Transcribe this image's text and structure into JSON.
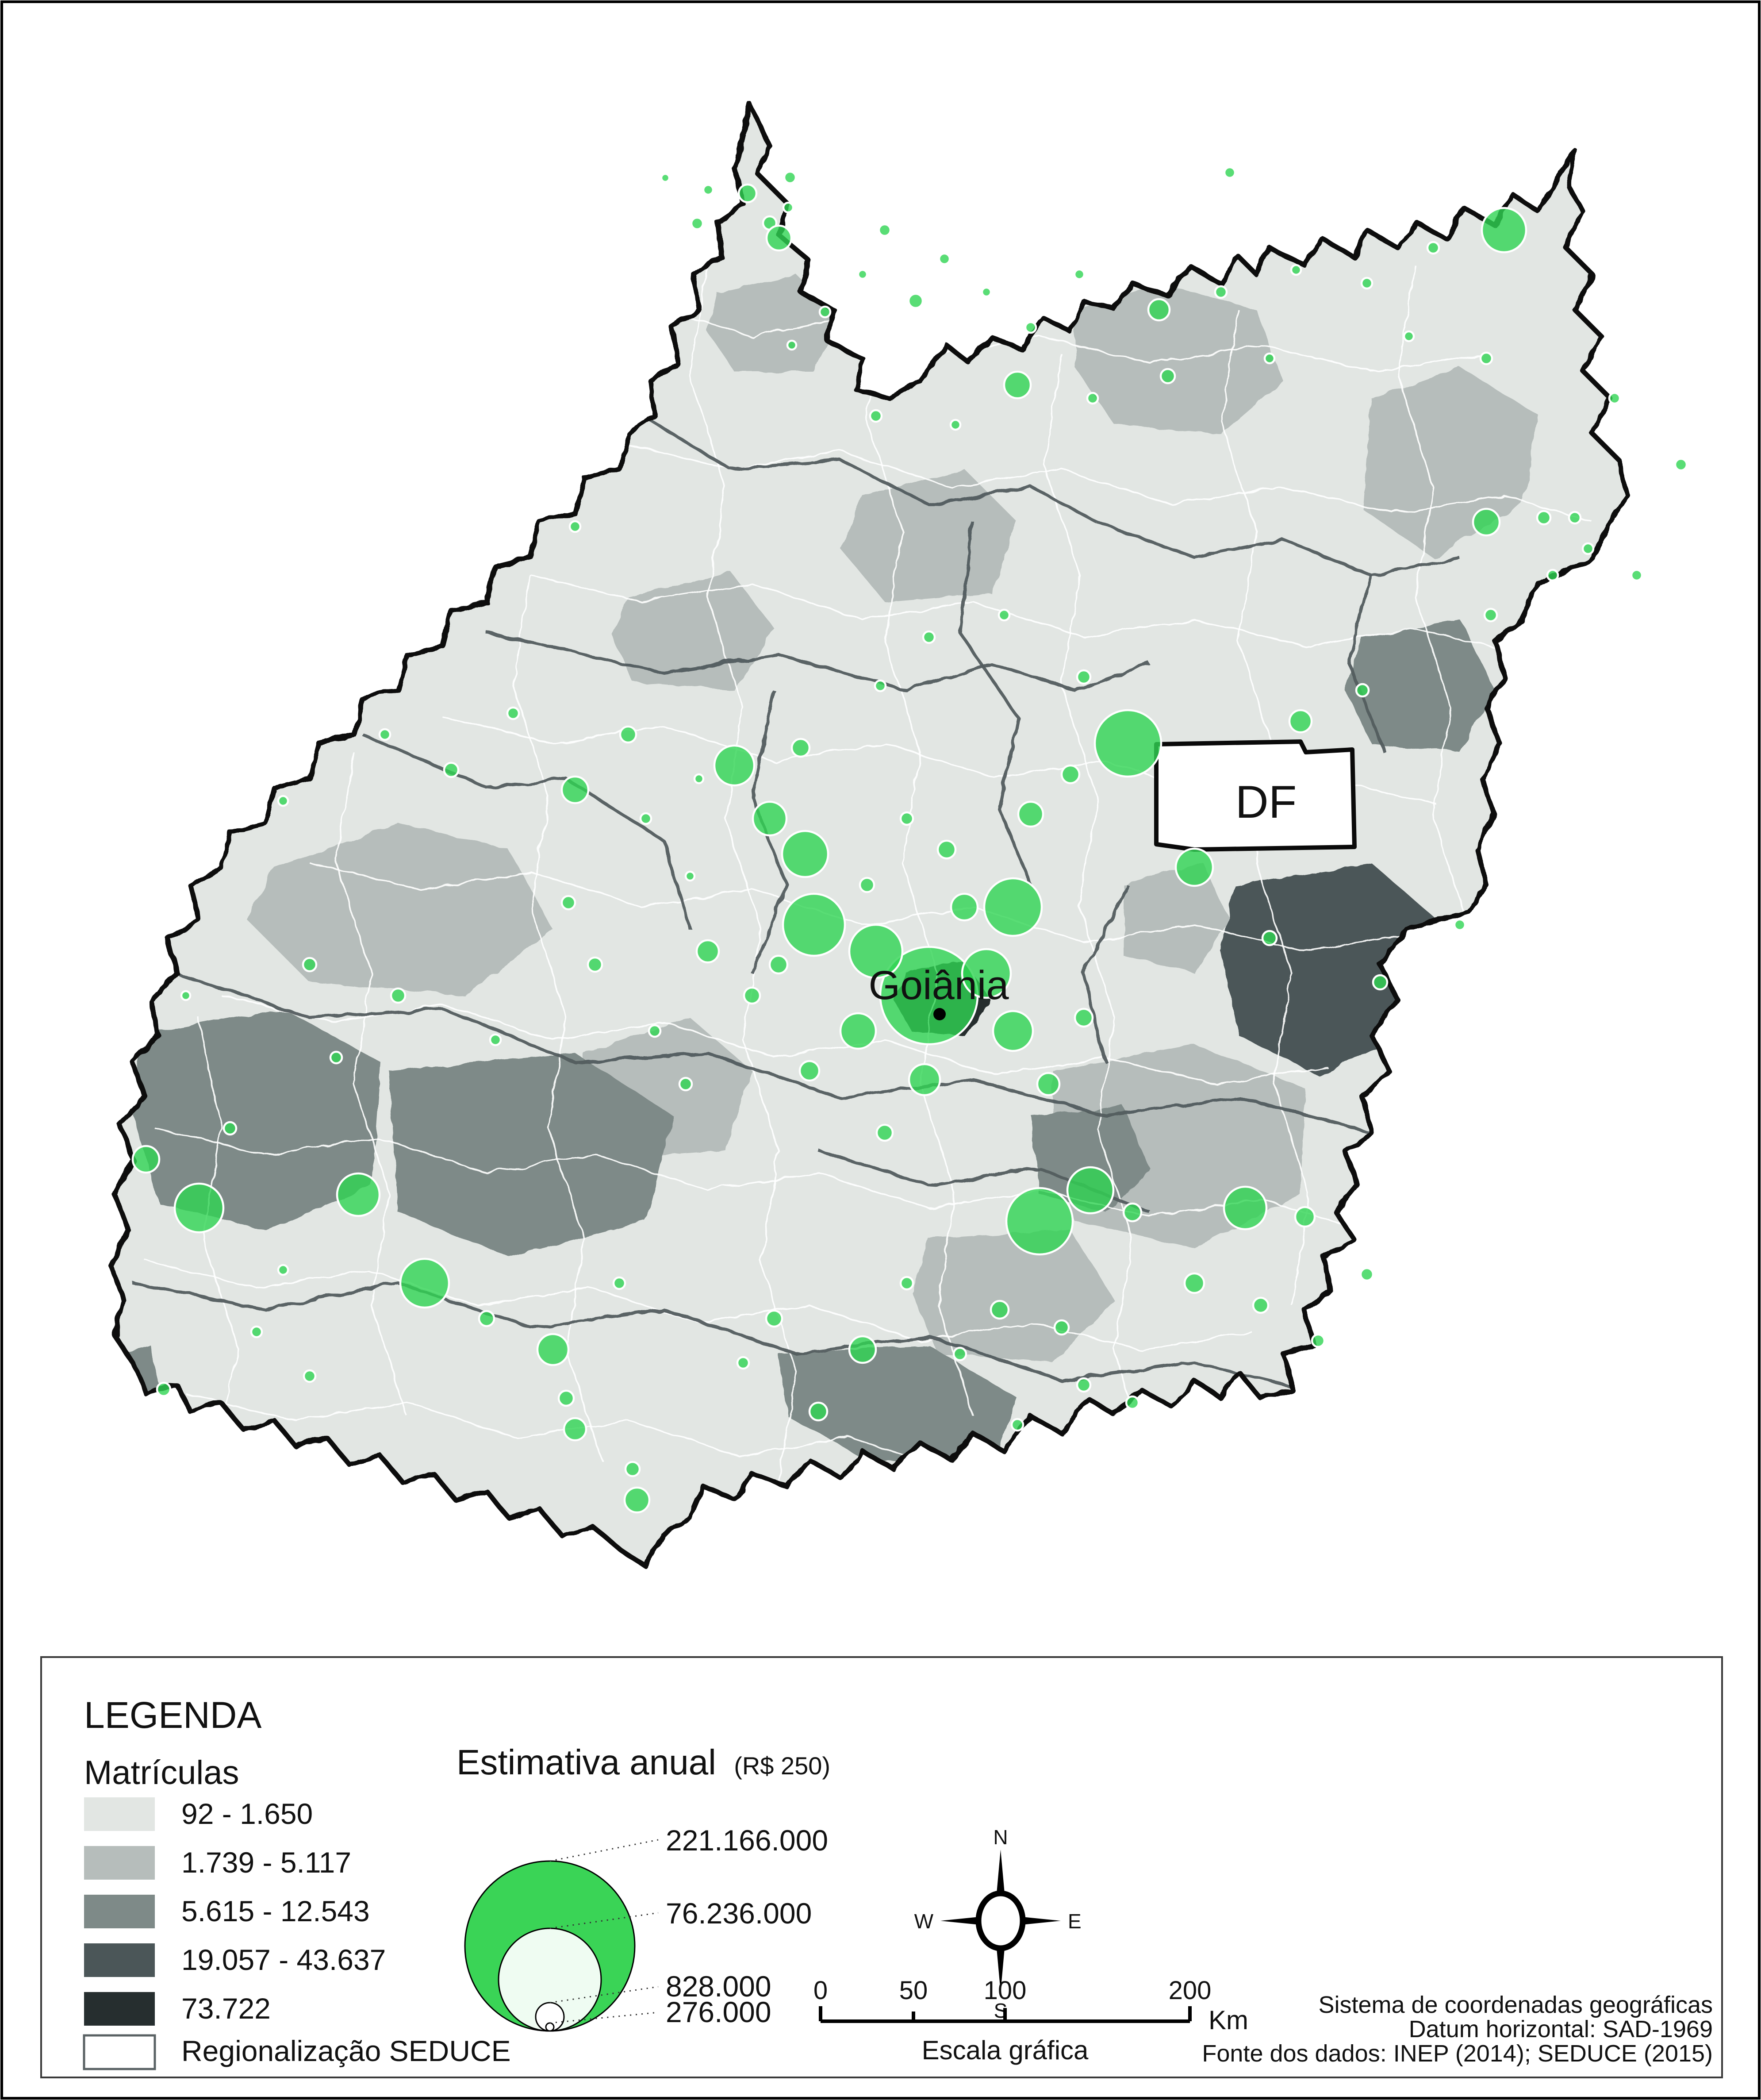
{
  "map": {
    "labels": {
      "df": "DF",
      "goiania": "Goiânia"
    },
    "colors": {
      "class_1": "#e2e6e3",
      "class_2": "#b6bdbb",
      "class_3": "#7e8a88",
      "class_4": "#4b5658",
      "class_5": "#262e2f",
      "bubble_green": "#2fd452",
      "state_border": "#0a0a0a"
    },
    "circles": [
      [
        1504,
        402,
        9
      ],
      [
        1601,
        429,
        11
      ],
      [
        1690,
        437,
        20
      ],
      [
        1786,
        401,
        13
      ],
      [
        1576,
        505,
        13
      ],
      [
        1782,
        469,
        11
      ],
      [
        1740,
        504,
        15
      ],
      [
        1761,
        538,
        28
      ],
      [
        2000,
        520,
        13
      ],
      [
        1950,
        620,
        10
      ],
      [
        2135,
        585,
        12
      ],
      [
        2070,
        680,
        16
      ],
      [
        2230,
        660,
        10
      ],
      [
        1865,
        705,
        12
      ],
      [
        1790,
        780,
        10
      ],
      [
        2330,
        740,
        12
      ],
      [
        2440,
        620,
        11
      ],
      [
        2620,
        700,
        24
      ],
      [
        2760,
        660,
        13
      ],
      [
        2930,
        610,
        11
      ],
      [
        3090,
        640,
        12
      ],
      [
        3240,
        560,
        13
      ],
      [
        3400,
        520,
        50
      ],
      [
        3185,
        760,
        11
      ],
      [
        3360,
        810,
        13
      ],
      [
        2870,
        810,
        11
      ],
      [
        2640,
        850,
        16
      ],
      [
        2300,
        870,
        30
      ],
      [
        2470,
        900,
        12
      ],
      [
        2160,
        960,
        11
      ],
      [
        1980,
        940,
        13
      ],
      [
        3650,
        900,
        12
      ],
      [
        3800,
        1050,
        13
      ],
      [
        3560,
        1170,
        13
      ],
      [
        3360,
        1180,
        30
      ],
      [
        3490,
        1170,
        15
      ],
      [
        3590,
        1240,
        12
      ],
      [
        3510,
        1300,
        12
      ],
      [
        3370,
        1390,
        14
      ],
      [
        3700,
        1300,
        12
      ],
      [
        1160,
        1612,
        13
      ],
      [
        1420,
        1660,
        18
      ],
      [
        870,
        1660,
        12
      ],
      [
        1020,
        1740,
        16
      ],
      [
        640,
        1810,
        11
      ],
      [
        1300,
        1785,
        30
      ],
      [
        1580,
        1760,
        10
      ],
      [
        1660,
        1730,
        45
      ],
      [
        1810,
        1690,
        20
      ],
      [
        1460,
        1850,
        12
      ],
      [
        1740,
        1850,
        38
      ],
      [
        1820,
        1930,
        52
      ],
      [
        1560,
        1980,
        10
      ],
      [
        1285,
        2040,
        15
      ],
      [
        1345,
        2180,
        16
      ],
      [
        700,
        2180,
        15
      ],
      [
        420,
        2250,
        10
      ],
      [
        760,
        2390,
        13
      ],
      [
        900,
        2250,
        16
      ],
      [
        1120,
        2350,
        12
      ],
      [
        2450,
        1530,
        15
      ],
      [
        2270,
        1390,
        12
      ],
      [
        2100,
        1440,
        13
      ],
      [
        1990,
        1550,
        12
      ],
      [
        2550,
        1680,
        75
      ],
      [
        2700,
        1960,
        42
      ],
      [
        2420,
        1750,
        20
      ],
      [
        2330,
        1840,
        28
      ],
      [
        2290,
        2050,
        65
      ],
      [
        2140,
        1920,
        20
      ],
      [
        2050,
        1850,
        14
      ],
      [
        1960,
        2000,
        16
      ],
      [
        2940,
        1630,
        25
      ],
      [
        3080,
        1560,
        14
      ],
      [
        2870,
        2120,
        16
      ],
      [
        3120,
        2220,
        16
      ],
      [
        3300,
        2090,
        12
      ],
      [
        2100,
        2250,
        110
      ],
      [
        1980,
        2150,
        60
      ],
      [
        1840,
        2090,
        70
      ],
      [
        2230,
        2200,
        55
      ],
      [
        2290,
        2330,
        45
      ],
      [
        1940,
        2330,
        40
      ],
      [
        2090,
        2440,
        35
      ],
      [
        1830,
        2420,
        22
      ],
      [
        2000,
        2560,
        18
      ],
      [
        1700,
        2250,
        18
      ],
      [
        1600,
        2150,
        25
      ],
      [
        1760,
        2180,
        20
      ],
      [
        2180,
        2050,
        30
      ],
      [
        2370,
        2450,
        25
      ],
      [
        2450,
        2300,
        20
      ],
      [
        1480,
        2330,
        13
      ],
      [
        1550,
        2450,
        14
      ],
      [
        2350,
        2760,
        75
      ],
      [
        2465,
        2690,
        52
      ],
      [
        2560,
        2740,
        20
      ],
      [
        2815,
        2730,
        48
      ],
      [
        2950,
        2750,
        22
      ],
      [
        3090,
        2880,
        14
      ],
      [
        2700,
        2900,
        22
      ],
      [
        2850,
        2950,
        17
      ],
      [
        2980,
        3030,
        14
      ],
      [
        2260,
        2960,
        20
      ],
      [
        2400,
        3000,
        16
      ],
      [
        2170,
        3060,
        14
      ],
      [
        2450,
        3130,
        15
      ],
      [
        2300,
        3220,
        13
      ],
      [
        2560,
        3170,
        14
      ],
      [
        2050,
        2900,
        14
      ],
      [
        1950,
        3050,
        30
      ],
      [
        1750,
        2980,
        18
      ],
      [
        1680,
        3080,
        13
      ],
      [
        1850,
        3190,
        20
      ],
      [
        1400,
        2900,
        13
      ],
      [
        1250,
        3050,
        35
      ],
      [
        1100,
        2980,
        17
      ],
      [
        1300,
        3230,
        25
      ],
      [
        1280,
        3160,
        17
      ],
      [
        450,
        2730,
        55
      ],
      [
        810,
        2700,
        48
      ],
      [
        640,
        2870,
        11
      ],
      [
        960,
        2900,
        55
      ],
      [
        370,
        3140,
        15
      ],
      [
        700,
        3110,
        13
      ],
      [
        580,
        3010,
        12
      ],
      [
        330,
        2620,
        30
      ],
      [
        520,
        2550,
        14
      ],
      [
        1440,
        3390,
        28
      ],
      [
        1430,
        3320,
        16
      ],
      [
        1300,
        1190,
        12
      ],
      [
        2780,
        390,
        12
      ]
    ]
  },
  "legend": {
    "title": "LEGENDA",
    "matriculas": {
      "title": "Matrículas",
      "classes": [
        {
          "label": "92 - 1.650",
          "color": "#e2e6e3"
        },
        {
          "label": "1.739 - 5.117",
          "color": "#b6bdbb"
        },
        {
          "label": "5.615 - 12.543",
          "color": "#7e8a88"
        },
        {
          "label": "19.057 - 43.637",
          "color": "#4b5658"
        },
        {
          "label": "73.722",
          "color": "#262e2f"
        }
      ],
      "region_label": "Regionalização SEDUCE"
    },
    "estimativa": {
      "title": "Estimativa anual",
      "subtitle": "(R$ 250)",
      "values": [
        "221.166.000",
        "76.236.000",
        "828.000",
        "276.000"
      ]
    },
    "compass": {
      "n": "N",
      "s": "S",
      "e": "E",
      "w": "W"
    },
    "scalebar": {
      "ticks": [
        "0",
        "50",
        "100",
        "200"
      ],
      "unit": "Km",
      "caption": "Escala gráfica"
    },
    "credits": [
      "Sistema de coordenadas geográficas",
      "Datum horizontal: SAD-1969",
      "Fonte dos dados: INEP (2014); SEDUCE (2015)"
    ]
  }
}
